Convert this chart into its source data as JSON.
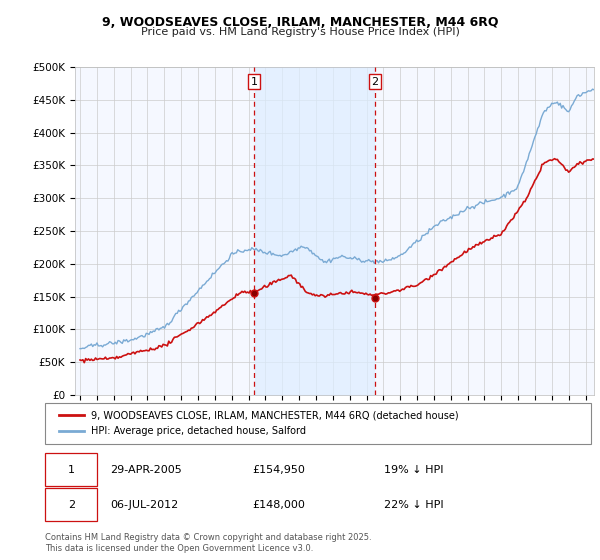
{
  "title": "9, WOODSEAVES CLOSE, IRLAM, MANCHESTER, M44 6RQ",
  "subtitle": "Price paid vs. HM Land Registry's House Price Index (HPI)",
  "ylim": [
    0,
    500000
  ],
  "yticks": [
    0,
    50000,
    100000,
    150000,
    200000,
    250000,
    300000,
    350000,
    400000,
    450000,
    500000
  ],
  "ytick_labels": [
    "£0",
    "£50K",
    "£100K",
    "£150K",
    "£200K",
    "£250K",
    "£300K",
    "£350K",
    "£400K",
    "£450K",
    "£500K"
  ],
  "hpi_color": "#7aaad4",
  "price_color": "#cc1111",
  "vline_color": "#cc1111",
  "background_color": "#ffffff",
  "plot_bg_color": "#ffffff",
  "grid_color": "#cccccc",
  "shading_color": "#ddeeff",
  "legend_label_price": "9, WOODSEAVES CLOSE, IRLAM, MANCHESTER, M44 6RQ (detached house)",
  "legend_label_hpi": "HPI: Average price, detached house, Salford",
  "annotation1_date": "29-APR-2005",
  "annotation1_price": "£154,950",
  "annotation1_hpi": "19% ↓ HPI",
  "annotation2_date": "06-JUL-2012",
  "annotation2_price": "£148,000",
  "annotation2_hpi": "22% ↓ HPI",
  "footer": "Contains HM Land Registry data © Crown copyright and database right 2025.\nThis data is licensed under the Open Government Licence v3.0.",
  "vline1_year": 2005.33,
  "vline2_year": 2012.5,
  "marker1_year": 2005.33,
  "marker1_price": 154950,
  "marker2_year": 2012.5,
  "marker2_price": 148000
}
